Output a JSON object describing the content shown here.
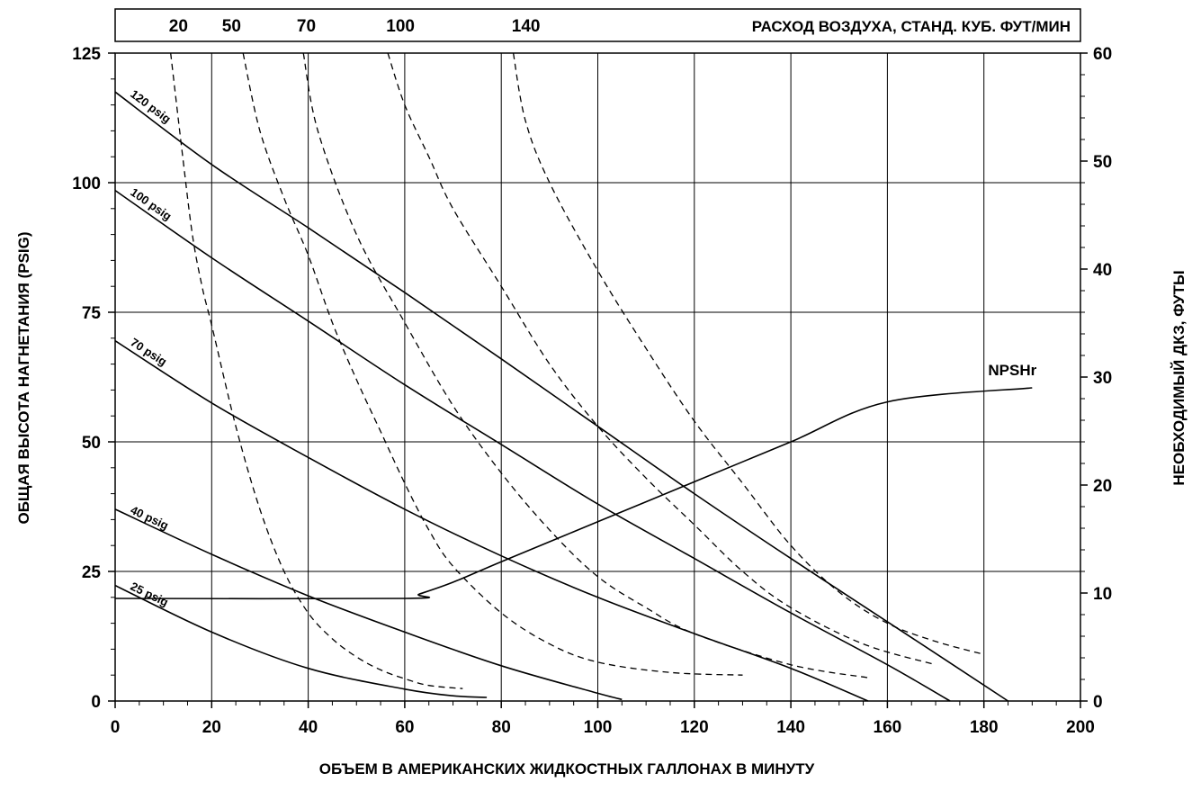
{
  "chart_data": {
    "type": "line",
    "xlabel": "ОБЪЕМ В АМЕРИКАНСКИХ ЖИДКОСТНЫХ ГАЛЛОНАХ В МИНУТУ",
    "ylabel_left": "ОБЩАЯ ВЫСОТА НАГНЕТАНИЯ (PSIG)",
    "ylabel_right": "НЕОБХОДИМЫЙ ДКЗ, ФУТЫ",
    "air_label": "РАСХОД ВОЗДУХА, СТАНД. КУБ. ФУТ/МИН",
    "xlim": [
      0,
      200
    ],
    "ylim_left": [
      0,
      125
    ],
    "ylim_right": [
      0,
      60
    ],
    "x_ticks": [
      "0",
      "20",
      "40",
      "60",
      "80",
      "100",
      "120",
      "140",
      "160",
      "180",
      "200"
    ],
    "y_left_ticks": [
      "0",
      "25",
      "50",
      "75",
      "100",
      "125"
    ],
    "y_right_ticks": [
      "0",
      "10",
      "20",
      "30",
      "40",
      "50",
      "60"
    ],
    "grid": true,
    "pressure_curves": [
      {
        "name": "120 psig",
        "points": [
          [
            0,
            117.5
          ],
          [
            20,
            103.5
          ],
          [
            40,
            91.3
          ],
          [
            60,
            78.8
          ],
          [
            80,
            66
          ],
          [
            100,
            53
          ],
          [
            120,
            40
          ],
          [
            140,
            27.5
          ],
          [
            160,
            15.3
          ],
          [
            185,
            0
          ]
        ]
      },
      {
        "name": "100 psig",
        "points": [
          [
            0,
            98.5
          ],
          [
            20,
            85.5
          ],
          [
            40,
            73.3
          ],
          [
            60,
            61
          ],
          [
            80,
            49.5
          ],
          [
            100,
            38
          ],
          [
            120,
            27.5
          ],
          [
            140,
            17
          ],
          [
            160,
            7
          ],
          [
            173,
            0
          ]
        ]
      },
      {
        "name": "70 psig",
        "points": [
          [
            0,
            69.5
          ],
          [
            20,
            57.5
          ],
          [
            40,
            47
          ],
          [
            60,
            37
          ],
          [
            80,
            28
          ],
          [
            100,
            20
          ],
          [
            120,
            13
          ],
          [
            140,
            6.3
          ],
          [
            156,
            0
          ]
        ]
      },
      {
        "name": "40 psig",
        "points": [
          [
            0,
            37
          ],
          [
            20,
            28.3
          ],
          [
            40,
            20.3
          ],
          [
            60,
            13.3
          ],
          [
            80,
            6.8
          ],
          [
            100,
            1.5
          ],
          [
            105,
            0.3
          ]
        ]
      },
      {
        "name": "25 psig",
        "points": [
          [
            0,
            22.3
          ],
          [
            20,
            13.3
          ],
          [
            40,
            6.3
          ],
          [
            60,
            2.3
          ],
          [
            70,
            1
          ],
          [
            77,
            0.7
          ]
        ]
      }
    ],
    "air_curves": [
      {
        "name": "20",
        "points": [
          [
            11.5,
            125
          ],
          [
            14,
            105
          ],
          [
            16,
            90
          ],
          [
            18,
            80
          ],
          [
            20,
            72.5
          ],
          [
            25,
            53
          ],
          [
            30,
            37
          ],
          [
            35,
            25
          ],
          [
            40,
            17
          ],
          [
            45,
            12
          ],
          [
            50,
            8.5
          ],
          [
            55,
            6
          ],
          [
            60,
            4.3
          ],
          [
            65,
            3
          ],
          [
            72,
            2.4
          ]
        ]
      },
      {
        "name": "50",
        "points": [
          [
            26.5,
            125
          ],
          [
            30,
            110
          ],
          [
            35,
            97
          ],
          [
            40,
            86
          ],
          [
            45,
            73
          ],
          [
            50,
            62
          ],
          [
            55,
            52
          ],
          [
            60,
            42
          ],
          [
            65,
            33
          ],
          [
            70,
            26
          ],
          [
            80,
            17
          ],
          [
            90,
            11
          ],
          [
            100,
            7.5
          ],
          [
            115,
            5.5
          ],
          [
            130,
            5
          ]
        ]
      },
      {
        "name": "70",
        "points": [
          [
            39,
            125
          ],
          [
            42,
            110
          ],
          [
            50,
            90
          ],
          [
            60,
            73
          ],
          [
            70,
            57
          ],
          [
            80,
            44
          ],
          [
            90,
            33
          ],
          [
            100,
            24
          ],
          [
            110,
            18
          ],
          [
            120,
            13
          ],
          [
            140,
            7
          ],
          [
            156,
            4.5
          ]
        ]
      },
      {
        "name": "100",
        "points": [
          [
            56.5,
            125
          ],
          [
            60,
            115
          ],
          [
            65,
            105
          ],
          [
            70,
            95
          ],
          [
            80,
            80
          ],
          [
            90,
            65
          ],
          [
            100,
            53
          ],
          [
            110,
            43
          ],
          [
            120,
            34
          ],
          [
            130,
            25
          ],
          [
            140,
            18
          ],
          [
            155,
            11
          ],
          [
            170,
            7
          ]
        ]
      },
      {
        "name": "140",
        "points": [
          [
            82.5,
            125
          ],
          [
            85,
            112
          ],
          [
            90,
            100
          ],
          [
            100,
            83
          ],
          [
            110,
            68
          ],
          [
            120,
            54
          ],
          [
            130,
            42
          ],
          [
            140,
            30
          ],
          [
            150,
            21
          ],
          [
            160,
            15
          ],
          [
            170,
            11.5
          ],
          [
            180,
            9
          ]
        ]
      }
    ],
    "air_top_ticks": [
      {
        "label": "20",
        "x": 10.5
      },
      {
        "label": "50",
        "x": 21.5
      },
      {
        "label": "70",
        "x": 37
      },
      {
        "label": "100",
        "x": 56.5
      },
      {
        "label": "140",
        "x": 82.5
      }
    ],
    "npshr": {
      "name": "NPSHr",
      "points": [
        [
          0,
          9.5
        ],
        [
          60,
          9.5
        ],
        [
          63,
          9.9
        ],
        [
          70,
          11
        ],
        [
          80,
          12.9
        ],
        [
          100,
          16.6
        ],
        [
          120,
          20.3
        ],
        [
          140,
          24
        ],
        [
          160,
          27.7
        ],
        [
          190,
          29
        ]
      ]
    }
  }
}
